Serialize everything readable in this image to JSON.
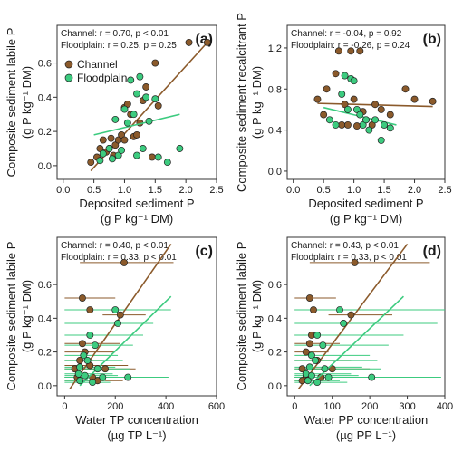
{
  "figure": {
    "colors": {
      "channel": "#8B5A2B",
      "floodplain": "#3CCB7F",
      "frame": "#333333"
    },
    "legend": {
      "channel": "Channel",
      "floodplain": "Floodplain"
    }
  },
  "chart_data": [
    {
      "type": "scatter",
      "panel_label": "(a)",
      "stats": {
        "channel": "Channel: r = 0.70, p < 0.01",
        "floodplain": "Floodplain: r = 0.25, p = 0.25"
      },
      "ylabel": [
        "Composite sediment labile P",
        "(g P kg⁻¹ DM)"
      ],
      "xlabel": [
        "Deposited sediment P",
        "(g P kg⁻¹ DM)"
      ],
      "xlim": [
        -0.1,
        2.5
      ],
      "ylim": [
        -0.08,
        0.82
      ],
      "xticks": [
        0.0,
        0.5,
        1.0,
        1.5,
        2.0,
        2.5
      ],
      "yticks": [
        0.0,
        0.2,
        0.4,
        0.6
      ],
      "series": [
        {
          "name": "Channel",
          "points": [
            [
              0.45,
              0.02
            ],
            [
              0.55,
              0.05
            ],
            [
              0.6,
              0.1
            ],
            [
              0.65,
              0.15
            ],
            [
              0.7,
              0.08
            ],
            [
              0.75,
              0.1
            ],
            [
              0.78,
              0.16
            ],
            [
              0.82,
              0.06
            ],
            [
              0.85,
              0.12
            ],
            [
              0.9,
              0.15
            ],
            [
              0.95,
              0.18
            ],
            [
              1.0,
              0.15
            ],
            [
              1.0,
              0.34
            ],
            [
              1.05,
              0.36
            ],
            [
              1.1,
              0.3
            ],
            [
              1.15,
              0.17
            ],
            [
              1.2,
              0.18
            ],
            [
              1.25,
              0.25
            ],
            [
              1.3,
              0.38
            ],
            [
              1.35,
              0.46
            ],
            [
              1.45,
              0.05
            ],
            [
              1.5,
              0.6
            ],
            [
              1.55,
              0.35
            ],
            [
              2.05,
              0.72
            ],
            [
              2.35,
              0.72
            ]
          ],
          "fit": [
            [
              0.45,
              -0.03
            ],
            [
              2.35,
              0.72
            ]
          ]
        },
        {
          "name": "Floodplain",
          "points": [
            [
              0.6,
              0.03
            ],
            [
              0.65,
              0.07
            ],
            [
              0.75,
              0.1
            ],
            [
              0.8,
              0.04
            ],
            [
              0.85,
              0.27
            ],
            [
              0.9,
              0.06
            ],
            [
              0.95,
              0.09
            ],
            [
              1.0,
              0.33
            ],
            [
              1.05,
              0.25
            ],
            [
              1.1,
              0.5
            ],
            [
              1.15,
              0.3
            ],
            [
              1.2,
              0.42
            ],
            [
              1.25,
              0.52
            ],
            [
              1.3,
              0.1
            ],
            [
              1.35,
              0.4
            ],
            [
              1.4,
              0.26
            ],
            [
              1.5,
              0.39
            ],
            [
              1.55,
              0.05
            ],
            [
              1.7,
              0.02
            ],
            [
              1.9,
              0.1
            ],
            [
              1.2,
              0.06
            ]
          ],
          "fit": [
            [
              0.5,
              0.18
            ],
            [
              1.9,
              0.3
            ]
          ]
        }
      ]
    },
    {
      "type": "scatter",
      "panel_label": "(b)",
      "stats": {
        "channel": "Channel: r = -0.04, p = 0.92",
        "floodplain": "Floodplain: r = -0.26, p = 0.24"
      },
      "ylabel": [
        "Composite sediment recalcitrant P",
        "(g P kg⁻¹ DM)"
      ],
      "xlabel": [
        "Deposited sediment P",
        "(g P kg⁻¹ DM)"
      ],
      "xlim": [
        -0.1,
        2.5
      ],
      "ylim": [
        -0.08,
        1.42
      ],
      "xticks": [
        0.0,
        0.5,
        1.0,
        1.5,
        2.0,
        2.5
      ],
      "yticks": [
        0.0,
        0.4,
        0.8,
        1.2
      ],
      "series": [
        {
          "name": "Channel",
          "points": [
            [
              0.4,
              0.7
            ],
            [
              0.5,
              0.55
            ],
            [
              0.55,
              0.8
            ],
            [
              0.7,
              0.95
            ],
            [
              0.75,
              1.17
            ],
            [
              0.8,
              0.45
            ],
            [
              0.85,
              0.65
            ],
            [
              0.9,
              0.45
            ],
            [
              0.95,
              1.17
            ],
            [
              1.0,
              0.7
            ],
            [
              1.05,
              0.44
            ],
            [
              1.1,
              1.17
            ],
            [
              1.15,
              0.58
            ],
            [
              1.2,
              0.5
            ],
            [
              1.3,
              0.45
            ],
            [
              1.35,
              0.65
            ],
            [
              1.45,
              0.6
            ],
            [
              1.6,
              0.55
            ],
            [
              1.85,
              0.8
            ],
            [
              2.0,
              0.7
            ],
            [
              2.3,
              0.68
            ]
          ],
          "fit": [
            [
              0.4,
              0.66
            ],
            [
              2.3,
              0.63
            ]
          ]
        },
        {
          "name": "Floodplain",
          "points": [
            [
              0.6,
              0.5
            ],
            [
              0.7,
              0.45
            ],
            [
              0.8,
              0.75
            ],
            [
              0.85,
              0.93
            ],
            [
              0.9,
              0.6
            ],
            [
              0.95,
              0.9
            ],
            [
              1.0,
              0.88
            ],
            [
              1.05,
              0.6
            ],
            [
              1.1,
              0.55
            ],
            [
              1.15,
              0.45
            ],
            [
              1.2,
              0.5
            ],
            [
              1.25,
              0.4
            ],
            [
              1.35,
              0.5
            ],
            [
              1.45,
              0.3
            ],
            [
              1.5,
              0.45
            ],
            [
              1.6,
              0.42
            ]
          ],
          "fit": [
            [
              0.5,
              0.62
            ],
            [
              1.7,
              0.45
            ]
          ]
        }
      ]
    },
    {
      "type": "scatter",
      "panel_label": "(c)",
      "stats": {
        "channel": "Channel: r = 0.40, p < 0.01",
        "floodplain": "Floodplain: r = 0.33, p < 0.01"
      },
      "ylabel": [
        "Composite sediment labile P",
        "(g P kg⁻¹ DM)"
      ],
      "xlabel": [
        "Water TP concentration",
        "(µg TP L⁻¹)"
      ],
      "xlim": [
        -30,
        600
      ],
      "ylim": [
        -0.06,
        0.88
      ],
      "xticks": [
        0,
        200,
        400,
        600
      ],
      "yticks": [
        0.0,
        0.2,
        0.4,
        0.6
      ],
      "series": [
        {
          "name": "Channel",
          "points": [
            [
              235,
              0.73
            ],
            [
              70,
              0.52
            ],
            [
              100,
              0.45
            ],
            [
              220,
              0.42
            ],
            [
              70,
              0.25
            ],
            [
              80,
              0.2
            ],
            [
              60,
              0.15
            ],
            [
              100,
              0.12
            ],
            [
              160,
              0.1
            ],
            [
              40,
              0.1
            ],
            [
              50,
              0.05
            ],
            [
              110,
              0.05
            ],
            [
              130,
              0.03
            ]
          ],
          "err": [
            [
              60,
              430
            ],
            [
              0,
              200
            ],
            [
              0,
              170
            ],
            [
              150,
              320
            ],
            [
              0,
              220
            ],
            [
              0,
              200
            ],
            [
              0,
              150
            ],
            [
              0,
              250
            ],
            [
              80,
              280
            ],
            [
              0,
              120
            ],
            [
              0,
              180
            ],
            [
              0,
              210
            ],
            [
              0,
              230
            ]
          ],
          "fit": [
            [
              20,
              -0.02
            ],
            [
              420,
              0.84
            ]
          ]
        },
        {
          "name": "Floodplain",
          "points": [
            [
              200,
              0.45
            ],
            [
              210,
              0.37
            ],
            [
              100,
              0.3
            ],
            [
              120,
              0.24
            ],
            [
              75,
              0.18
            ],
            [
              90,
              0.15
            ],
            [
              60,
              0.11
            ],
            [
              130,
              0.1
            ],
            [
              55,
              0.07
            ],
            [
              80,
              0.06
            ],
            [
              150,
              0.05
            ],
            [
              60,
              0.03
            ],
            [
              250,
              0.05
            ],
            [
              110,
              0.02
            ]
          ],
          "err": [
            [
              0,
              420
            ],
            [
              0,
              350
            ],
            [
              0,
              310
            ],
            [
              0,
              270
            ],
            [
              0,
              210
            ],
            [
              0,
              230
            ],
            [
              0,
              200
            ],
            [
              0,
              260
            ],
            [
              0,
              190
            ],
            [
              0,
              210
            ],
            [
              0,
              240
            ],
            [
              0,
              160
            ],
            [
              0,
              410
            ],
            [
              0,
              180
            ]
          ],
          "fit": [
            [
              60,
              0.0
            ],
            [
              420,
              0.53
            ]
          ]
        }
      ]
    },
    {
      "type": "scatter",
      "panel_label": "(d)",
      "stats": {
        "channel": "Channel: r = 0.43, p < 0.01",
        "floodplain": "Floodplain: r = 0.33, p < 0.01"
      },
      "ylabel": [
        "Composite sediment labile P",
        "(g P kg⁻¹ DM)"
      ],
      "xlabel": [
        "Water PP concentration",
        "(µg PP L⁻¹)"
      ],
      "xlim": [
        -20,
        400
      ],
      "ylim": [
        -0.06,
        0.88
      ],
      "xticks": [
        0,
        100,
        200,
        300,
        400
      ],
      "yticks": [
        0.0,
        0.2,
        0.4,
        0.6
      ],
      "series": [
        {
          "name": "Channel",
          "points": [
            [
              160,
              0.73
            ],
            [
              40,
              0.52
            ],
            [
              50,
              0.45
            ],
            [
              150,
              0.42
            ],
            [
              45,
              0.3
            ],
            [
              40,
              0.25
            ],
            [
              30,
              0.2
            ],
            [
              60,
              0.15
            ],
            [
              100,
              0.1
            ],
            [
              20,
              0.1
            ],
            [
              30,
              0.05
            ],
            [
              70,
              0.05
            ],
            [
              20,
              0.03
            ]
          ],
          "err": [
            [
              40,
              360
            ],
            [
              0,
              110
            ],
            [
              0,
              100
            ],
            [
              90,
              260
            ],
            [
              0,
              110
            ],
            [
              0,
              120
            ],
            [
              0,
              90
            ],
            [
              0,
              150
            ],
            [
              40,
              200
            ],
            [
              0,
              80
            ],
            [
              0,
              120
            ],
            [
              0,
              140
            ],
            [
              0,
              90
            ]
          ],
          "fit": [
            [
              10,
              -0.02
            ],
            [
              300,
              0.84
            ]
          ]
        },
        {
          "name": "Floodplain",
          "points": [
            [
              120,
              0.45
            ],
            [
              130,
              0.37
            ],
            [
              60,
              0.3
            ],
            [
              75,
              0.24
            ],
            [
              45,
              0.18
            ],
            [
              55,
              0.15
            ],
            [
              40,
              0.11
            ],
            [
              80,
              0.1
            ],
            [
              30,
              0.07
            ],
            [
              45,
              0.06
            ],
            [
              90,
              0.05
            ],
            [
              35,
              0.03
            ],
            [
              205,
              0.05
            ],
            [
              60,
              0.02
            ]
          ],
          "err": [
            [
              0,
              400
            ],
            [
              0,
              380
            ],
            [
              0,
              290
            ],
            [
              0,
              250
            ],
            [
              0,
              200
            ],
            [
              0,
              220
            ],
            [
              0,
              180
            ],
            [
              0,
              230
            ],
            [
              0,
              150
            ],
            [
              0,
              170
            ],
            [
              0,
              200
            ],
            [
              0,
              120
            ],
            [
              0,
              390
            ],
            [
              0,
              140
            ]
          ],
          "fit": [
            [
              40,
              0.0
            ],
            [
              290,
              0.53
            ]
          ]
        }
      ]
    }
  ]
}
